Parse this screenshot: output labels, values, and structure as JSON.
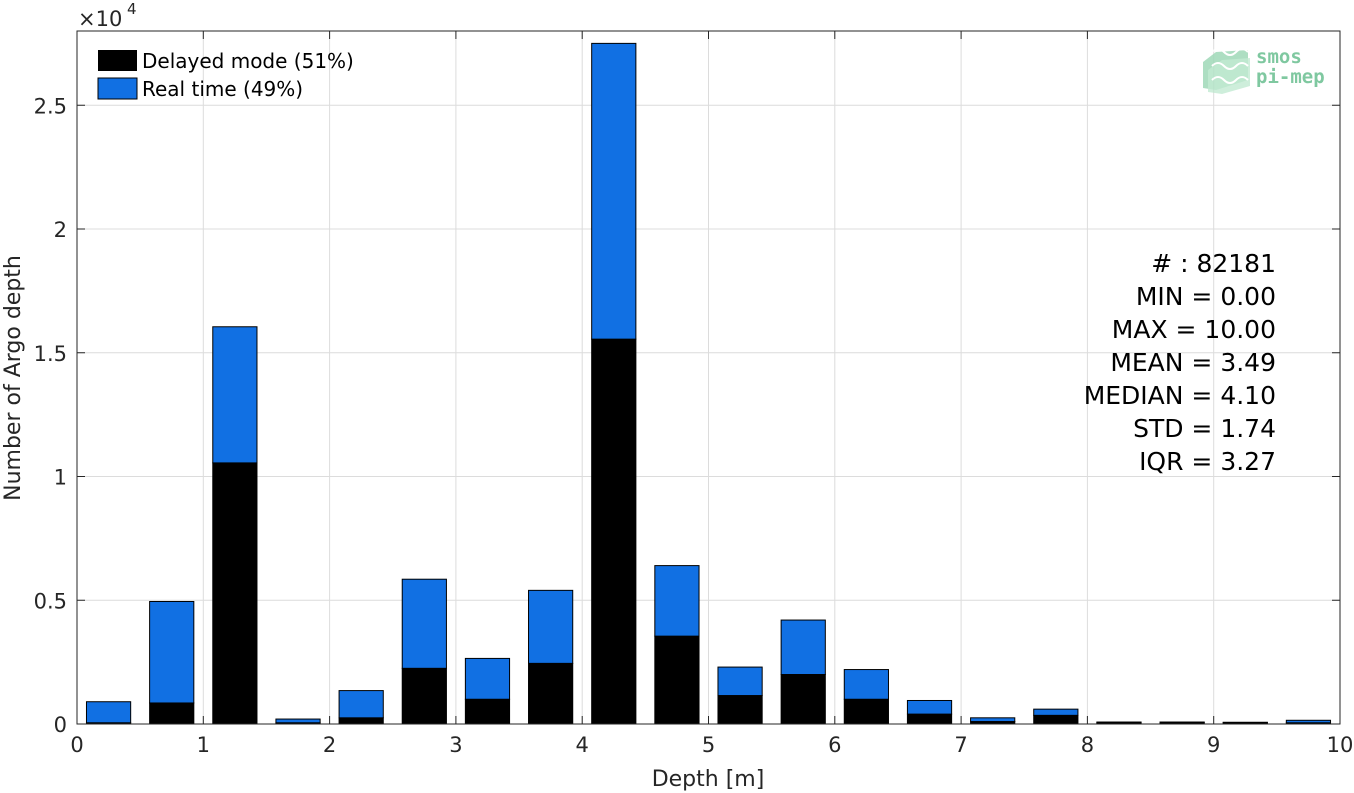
{
  "chart_data": {
    "type": "bar",
    "stacked": true,
    "xlabel": "Depth [m]",
    "ylabel": "Number of Argo depth",
    "y_exponent_label": "×10",
    "y_exponent": "4",
    "xlim": [
      0,
      10
    ],
    "ylim": [
      0,
      28000
    ],
    "x_ticks": [
      0,
      1,
      2,
      3,
      4,
      5,
      6,
      7,
      8,
      9,
      10
    ],
    "y_ticks": [
      0,
      5000,
      10000,
      15000,
      20000,
      25000
    ],
    "y_tick_labels": [
      "0",
      "0.5",
      "1",
      "1.5",
      "2",
      "2.5"
    ],
    "grid": true,
    "legend_position": "top-left",
    "bin_width": 0.5,
    "bin_centers": [
      0.25,
      0.75,
      1.25,
      1.75,
      2.25,
      2.75,
      3.25,
      3.75,
      4.25,
      4.75,
      5.25,
      5.75,
      6.25,
      6.75,
      7.25,
      7.75,
      8.25,
      8.75,
      9.25,
      9.75
    ],
    "series": [
      {
        "name": "Delayed mode (51%)",
        "color": "#000000",
        "values": [
          50,
          850,
          10550,
          50,
          250,
          2250,
          1000,
          2450,
          15550,
          3550,
          1150,
          2000,
          1000,
          400,
          100,
          350,
          50,
          50,
          50,
          50
        ]
      },
      {
        "name": "Real time (49%)",
        "color": "#1170e3",
        "values": [
          850,
          4100,
          5500,
          150,
          1100,
          3600,
          1650,
          2950,
          11950,
          2850,
          1150,
          2200,
          1200,
          550,
          150,
          250,
          30,
          30,
          20,
          100
        ]
      }
    ]
  },
  "stats": {
    "count": "# : 82181",
    "min": "MIN = 0.00",
    "max": "MAX =  10.00",
    "mean": "MEAN = 3.49",
    "median": "MEDIAN = 4.10",
    "std": "STD = 1.74",
    "iqr": "IQR = 3.27"
  },
  "logo": {
    "line1": "smos",
    "line2": "pi-mep"
  },
  "colors": {
    "grid": "#dcdcdc",
    "axis": "#262626"
  }
}
